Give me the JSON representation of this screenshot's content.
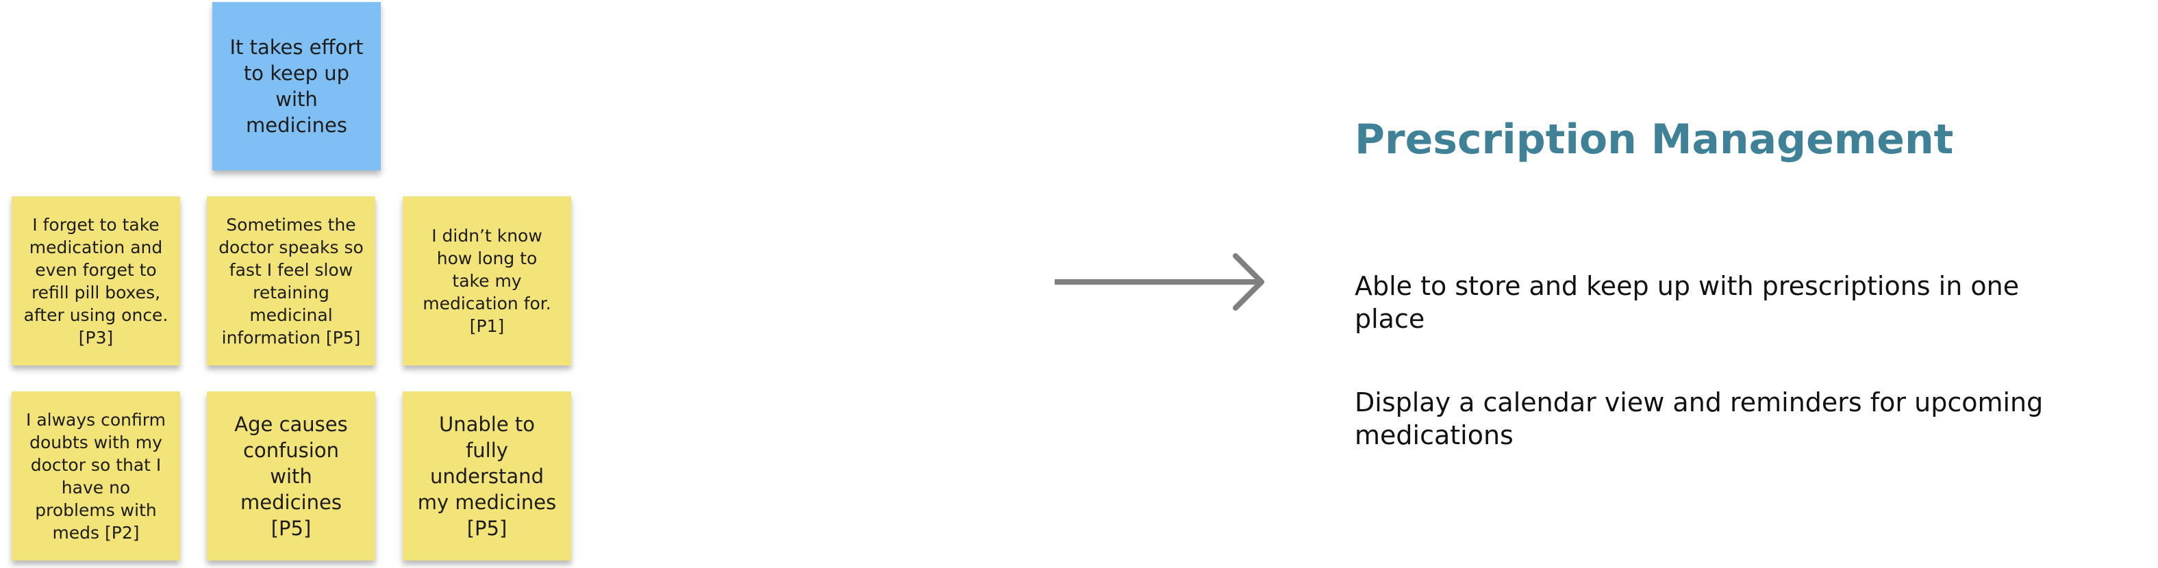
{
  "header_note": {
    "text": "It takes effort to keep up with medicines",
    "color": "#7fbff3"
  },
  "notes": [
    {
      "text": "I forget to take medication and even forget to refill pill boxes, after using once. [P3]"
    },
    {
      "text": "Sometimes the doctor speaks so fast I feel slow retaining medicinal information [P5]"
    },
    {
      "text": "I didn’t know how long to take my medication for. [P1]"
    },
    {
      "text": "I always confirm doubts with my doctor so that I have no problems with meds [P2]"
    },
    {
      "text": "Age causes confusion with medicines [P5]"
    },
    {
      "text": "Unable to fully understand my medicines [P5]"
    }
  ],
  "note_color": "#f3e47a",
  "arrow": {
    "icon": "right-arrow-icon",
    "color": "#808080"
  },
  "solution": {
    "title": "Prescription Management",
    "title_color": "#3f8298",
    "points": [
      "Able to store and keep up with prescriptions in one place",
      "Display a calendar view and reminders for upcoming medications"
    ]
  }
}
